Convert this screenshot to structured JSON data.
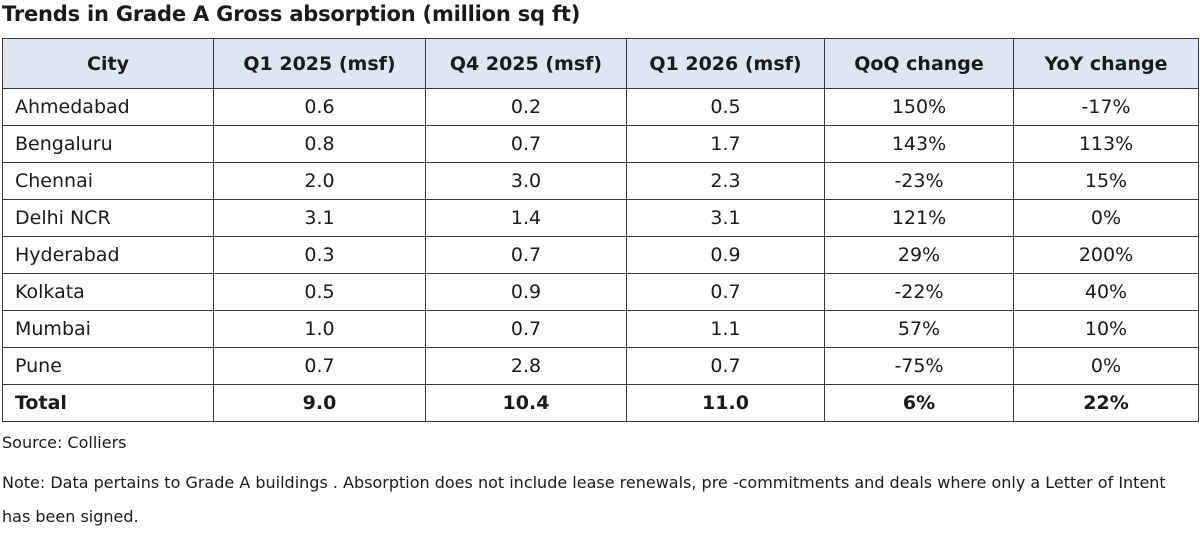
{
  "title": "Trends in Grade A Gross absorption (million sq ft)",
  "table": {
    "header": [
      "City",
      "Q1 2025 (msf)",
      "Q4 2025 (msf)",
      "Q1 2026 (msf)",
      "QoQ change",
      "YoY change"
    ],
    "rows": [
      [
        "Ahmedabad",
        "0.6",
        "0.2",
        "0.5",
        "150%",
        "-17%"
      ],
      [
        "Bengaluru",
        "0.8",
        "0.7",
        "1.7",
        "143%",
        "113%"
      ],
      [
        "Chennai",
        "2.0",
        "3.0",
        "2.3",
        "-23%",
        "15%"
      ],
      [
        "Delhi NCR",
        "3.1",
        "1.4",
        "3.1",
        "121%",
        "0%"
      ],
      [
        "Hyderabad",
        "0.3",
        "0.7",
        "0.9",
        "29%",
        "200%"
      ],
      [
        "Kolkata",
        "0.5",
        "0.9",
        "0.7",
        "-22%",
        "40%"
      ],
      [
        "Mumbai",
        "1.0",
        "0.7",
        "1.1",
        "57%",
        "10%"
      ],
      [
        "Pune",
        "0.7",
        "2.8",
        "0.7",
        "-75%",
        "0%"
      ]
    ],
    "total": [
      "Total",
      "9.0",
      "10.4",
      "11.0",
      "6%",
      "22%"
    ]
  },
  "source": "Source: Colliers",
  "note": "Note: Data pertains to Grade A buildings . Absorption does not include lease renewals, pre -commitments and deals where only a Letter of Intent has been signed."
}
